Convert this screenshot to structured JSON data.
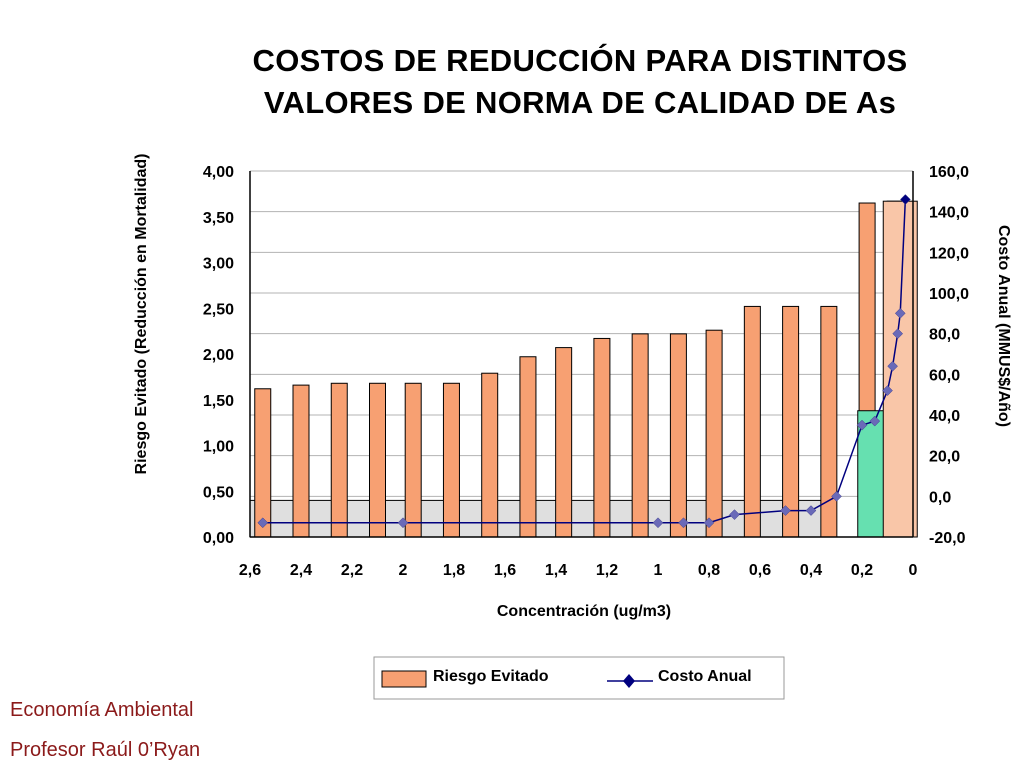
{
  "title_lines": [
    "COSTOS DE REDUCCIÓN PARA DISTINTOS",
    "VALORES DE NORMA DE CALIDAD DE As"
  ],
  "footer": {
    "course": "Economía Ambiental",
    "professor": "Profesor Raúl 0’Ryan"
  },
  "chart_data": {
    "type": "bar",
    "title": "COSTOS DE REDUCCIÓN PARA DISTINTOS VALORES DE NORMA DE CALIDAD DE As",
    "xlabel": "Concentración (ug/m3)",
    "ylabel": "Riesgo Evitado (Reducción en Mortalidad)",
    "y2label": "Costo Anual (MMUS$/Año)",
    "xlim": [
      2.6,
      0
    ],
    "ylim": [
      0,
      4
    ],
    "y2lim": [
      -20,
      160
    ],
    "x_ticks": [
      "2,6",
      "2,4",
      "2,2",
      "2",
      "1,8",
      "1,6",
      "1,4",
      "1,2",
      "1",
      "0,8",
      "0,6",
      "0,4",
      "0,2",
      "0"
    ],
    "y_ticks": [
      "0,00",
      "0,50",
      "1,00",
      "1,50",
      "2,00",
      "2,50",
      "3,00",
      "3,50",
      "4,00"
    ],
    "y2_ticks": [
      "-20,0",
      "0,0",
      "20,0",
      "40,0",
      "60,0",
      "80,0",
      "100,0",
      "120,0",
      "140,0",
      "160,0"
    ],
    "legend_position": "bottom",
    "bar_color": "#f7a072",
    "line_color": "#00007f",
    "series": [
      {
        "name": "Riesgo Evitado",
        "kind": "bar",
        "x": [
          2.55,
          2.4,
          2.25,
          2.1,
          1.96,
          1.81,
          1.66,
          1.51,
          1.37,
          1.22,
          1.07,
          0.92,
          0.78,
          0.63,
          0.48,
          0.33,
          0.18,
          0.07
        ],
        "values": [
          1.62,
          1.66,
          1.68,
          1.68,
          1.68,
          1.68,
          1.79,
          1.97,
          2.07,
          2.17,
          2.22,
          2.22,
          2.26,
          2.52,
          2.52,
          2.52,
          3.65,
          3.67
        ]
      },
      {
        "name": "Costo Anual",
        "kind": "line",
        "x": [
          2.55,
          2.0,
          1.0,
          0.9,
          0.8,
          0.7,
          0.5,
          0.4,
          0.3,
          0.2,
          0.15,
          0.1,
          0.08,
          0.06,
          0.05,
          0.03
        ],
        "values": [
          -13,
          -13,
          -13,
          -13,
          -13,
          -9,
          -7,
          -7,
          0,
          35,
          37,
          52,
          64,
          80,
          90,
          146
        ]
      }
    ],
    "annotations": [
      {
        "kind": "shaded_band",
        "x_range": [
          2.6,
          0.3
        ],
        "y2_range": [
          -20,
          -2
        ],
        "color": "#d9d9d9"
      },
      {
        "kind": "highlight_bar",
        "x": 0.15,
        "value": 1.38,
        "color": "#66e0b0"
      },
      {
        "kind": "highlight_bar",
        "x": 0.05,
        "value": 3.67,
        "color": "#f9c6a8"
      }
    ]
  }
}
